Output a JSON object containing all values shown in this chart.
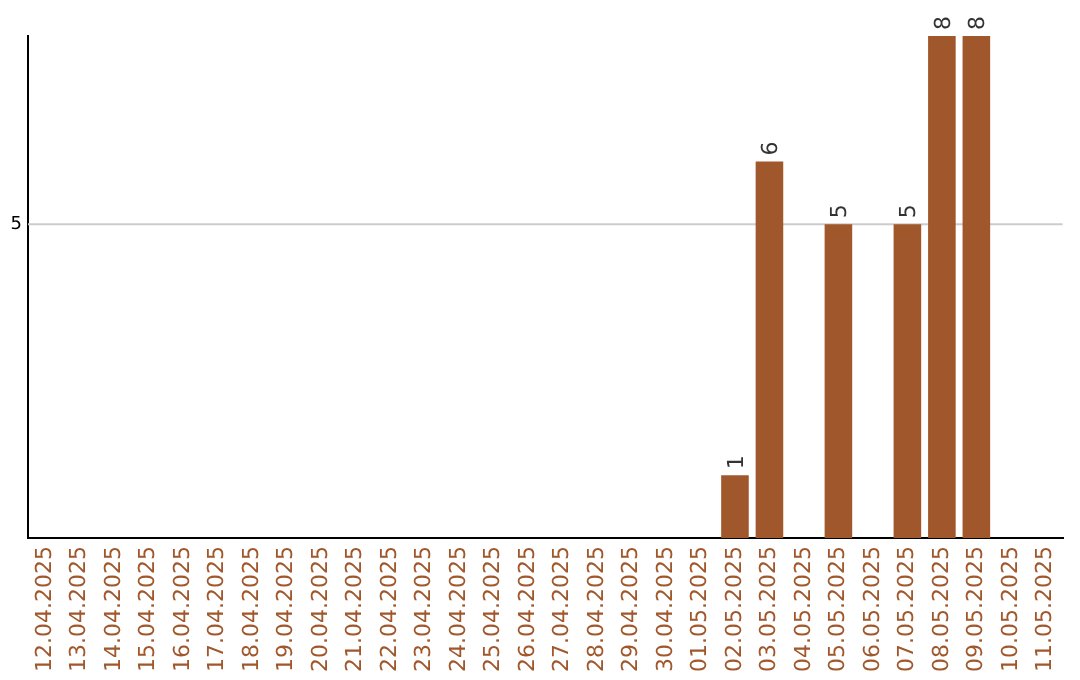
{
  "chart_data": {
    "type": "bar",
    "categories": [
      "12.04.2025",
      "13.04.2025",
      "14.04.2025",
      "15.04.2025",
      "16.04.2025",
      "17.04.2025",
      "18.04.2025",
      "19.04.2025",
      "20.04.2025",
      "21.04.2025",
      "22.04.2025",
      "23.04.2025",
      "24.04.2025",
      "25.04.2025",
      "26.04.2025",
      "27.04.2025",
      "28.04.2025",
      "29.04.2025",
      "30.04.2025",
      "01.05.2025",
      "02.05.2025",
      "03.05.2025",
      "04.05.2025",
      "05.05.2025",
      "06.05.2025",
      "07.05.2025",
      "08.05.2025",
      "09.05.2025",
      "10.05.2025",
      "11.05.2025"
    ],
    "values": [
      null,
      null,
      null,
      null,
      null,
      null,
      null,
      null,
      null,
      null,
      null,
      null,
      null,
      null,
      null,
      null,
      null,
      null,
      null,
      null,
      1,
      6,
      null,
      5,
      null,
      5,
      8,
      8,
      null,
      null
    ],
    "color": "#a0572b",
    "ylim": [
      0,
      8
    ],
    "tick_labels": "x",
    "data_labels": true,
    "ref_lines": [
      {
        "axis": "y",
        "value": 5,
        "label": "5",
        "color": "#cccccc"
      }
    ]
  }
}
